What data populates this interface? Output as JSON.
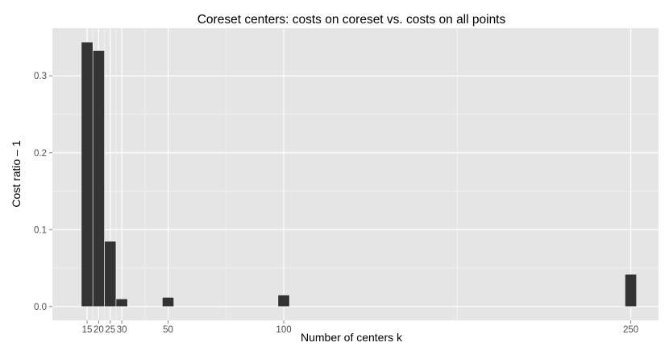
{
  "chart_data": {
    "type": "bar",
    "title": "Coreset centers: costs on coreset vs. costs on all points",
    "xlabel": "Number of centers k",
    "ylabel": "Cost ratio – 1",
    "x": [
      15,
      20,
      25,
      30,
      50,
      100,
      250
    ],
    "values": [
      0.344,
      0.333,
      0.085,
      0.01,
      0.012,
      0.015,
      0.042
    ],
    "xlim": [
      0,
      262
    ],
    "ylim": [
      -0.018,
      0.362
    ],
    "x_ticks": [
      15,
      20,
      25,
      30,
      50,
      100,
      250
    ],
    "x_tick_labels": [
      "15",
      "20",
      "25",
      "30",
      "50",
      "100",
      "250"
    ],
    "y_ticks": [
      0.0,
      0.1,
      0.2,
      0.3
    ],
    "y_tick_labels": [
      "0.0",
      "0.1",
      "0.2",
      "0.3"
    ],
    "grid": true,
    "colors": {
      "panel_background": "#e5e5e5",
      "grid_major": "#ffffff",
      "grid_minor": "#f0f0f0",
      "bar": "#333333",
      "text": "#000000",
      "tick_text": "#4d4d4d"
    }
  }
}
